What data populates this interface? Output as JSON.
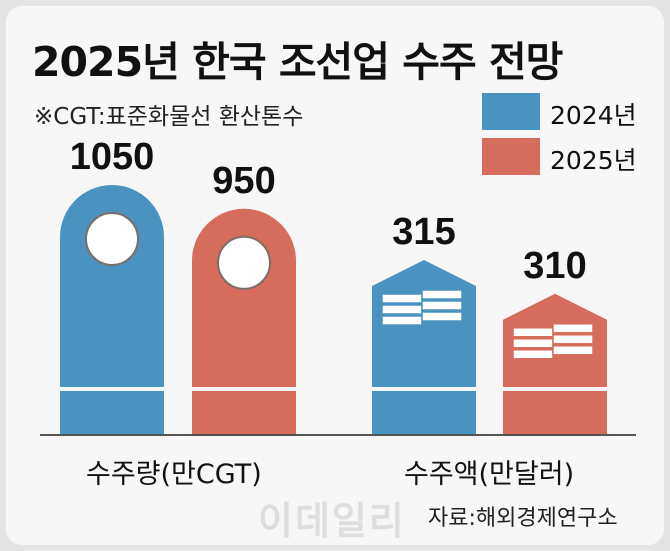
{
  "title": "2025년 한국 조선업 수주 전망",
  "note": "※CGT:표준화물선 환산톤수",
  "source": "자료:해외경제연구소",
  "watermark": "이데일리",
  "colors": {
    "2024": "#4a93c1",
    "2025": "#d66c5b",
    "baseline": "#555555"
  },
  "chart_data": {
    "type": "bar",
    "categories": [
      "수주량(만CGT)",
      "수주액(만달러)"
    ],
    "series": [
      {
        "name": "2024년",
        "values": [
          1050,
          315
        ]
      },
      {
        "name": "2025년",
        "values": [
          950,
          310
        ]
      }
    ],
    "legend_placement": "top-right",
    "grid": false,
    "icons": [
      "ship-porthole-icon",
      "stacked-cash-icon"
    ]
  }
}
